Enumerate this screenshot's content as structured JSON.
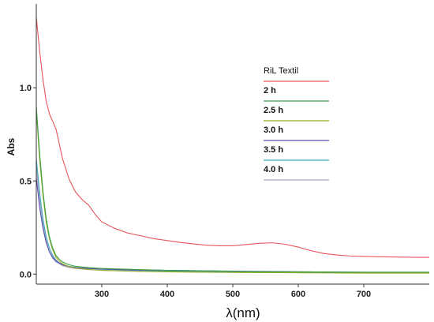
{
  "chart_data": {
    "type": "line",
    "title": "",
    "xlabel": "λ(nm)",
    "ylabel": "Abs",
    "xlim": [
      200,
      800
    ],
    "ylim": [
      -0.02,
      1.45
    ],
    "x_ticks": [
      300,
      400,
      500,
      600,
      700
    ],
    "y_ticks": [
      0.0,
      0.5,
      1.0
    ],
    "x_tick_labels": [
      "300",
      "400",
      "500",
      "600",
      "700"
    ],
    "y_tick_labels": [
      "0.0",
      "0.5",
      "1.0"
    ],
    "grid": false,
    "legend_position": "upper-right",
    "series": [
      {
        "name": "RiL  Textil",
        "color": "#e8545a",
        "bold": false,
        "x": [
          200,
          205,
          210,
          215,
          220,
          225,
          230,
          240,
          250,
          260,
          270,
          280,
          290,
          300,
          320,
          340,
          360,
          380,
          400,
          420,
          440,
          460,
          480,
          500,
          520,
          540,
          560,
          580,
          600,
          620,
          640,
          660,
          680,
          700,
          720,
          740,
          760,
          780,
          800
        ],
        "y": [
          1.38,
          1.2,
          1.05,
          0.93,
          0.86,
          0.82,
          0.78,
          0.62,
          0.51,
          0.44,
          0.4,
          0.37,
          0.32,
          0.28,
          0.245,
          0.22,
          0.205,
          0.19,
          0.18,
          0.17,
          0.162,
          0.155,
          0.152,
          0.152,
          0.158,
          0.165,
          0.168,
          0.16,
          0.145,
          0.125,
          0.11,
          0.102,
          0.097,
          0.095,
          0.093,
          0.092,
          0.091,
          0.09,
          0.09
        ]
      },
      {
        "name": "2 h",
        "color": "#3aa043",
        "bold": true,
        "x": [
          200,
          205,
          210,
          215,
          220,
          225,
          230,
          235,
          240,
          250,
          260,
          280,
          300,
          350,
          400,
          450,
          500,
          550,
          600,
          650,
          700,
          750,
          800
        ],
        "y": [
          0.9,
          0.65,
          0.45,
          0.3,
          0.2,
          0.14,
          0.1,
          0.08,
          0.065,
          0.05,
          0.042,
          0.035,
          0.03,
          0.025,
          0.02,
          0.018,
          0.015,
          0.013,
          0.012,
          0.011,
          0.01,
          0.01,
          0.01
        ]
      },
      {
        "name": "2.5 h",
        "color": "#9aab1f",
        "bold": true,
        "x": [
          200,
          205,
          210,
          215,
          220,
          225,
          230,
          235,
          240,
          250,
          260,
          280,
          300,
          350,
          400,
          450,
          500,
          550,
          600,
          650,
          700,
          750,
          800
        ],
        "y": [
          0.88,
          0.62,
          0.43,
          0.28,
          0.19,
          0.13,
          0.09,
          0.07,
          0.055,
          0.04,
          0.032,
          0.025,
          0.02,
          0.015,
          0.012,
          0.01,
          0.009,
          0.008,
          0.007,
          0.006,
          0.005,
          0.005,
          0.005
        ]
      },
      {
        "name": "3.0 h",
        "color": "#5a4fb0",
        "bold": true,
        "x": [
          200,
          205,
          210,
          215,
          220,
          225,
          230,
          235,
          240,
          250,
          260,
          280,
          300,
          350,
          400,
          450,
          500,
          550,
          600,
          650,
          700,
          750,
          800
        ],
        "y": [
          0.52,
          0.36,
          0.25,
          0.17,
          0.12,
          0.09,
          0.07,
          0.06,
          0.05,
          0.04,
          0.035,
          0.03,
          0.027,
          0.022,
          0.02,
          0.018,
          0.016,
          0.014,
          0.012,
          0.011,
          0.01,
          0.01,
          0.01
        ]
      },
      {
        "name": "3.5 h",
        "color": "#3fa7b5",
        "bold": true,
        "x": [
          200,
          205,
          210,
          215,
          220,
          225,
          230,
          235,
          240,
          250,
          260,
          280,
          300,
          350,
          400,
          450,
          500,
          550,
          600,
          650,
          700,
          750,
          800
        ],
        "y": [
          0.62,
          0.44,
          0.3,
          0.2,
          0.14,
          0.1,
          0.075,
          0.06,
          0.05,
          0.042,
          0.036,
          0.03,
          0.026,
          0.02,
          0.017,
          0.015,
          0.013,
          0.012,
          0.01,
          0.009,
          0.008,
          0.008,
          0.008
        ]
      },
      {
        "name": "4.0 h",
        "color": "#a8a8c8",
        "bold": true,
        "x": [
          200,
          205,
          210,
          215,
          220,
          225,
          230,
          235,
          240,
          250,
          260,
          280,
          300,
          350,
          400,
          450,
          500,
          550,
          600,
          650,
          700,
          750,
          800
        ],
        "y": [
          0.58,
          0.4,
          0.27,
          0.18,
          0.12,
          0.085,
          0.065,
          0.055,
          0.045,
          0.035,
          0.03,
          0.024,
          0.02,
          0.016,
          0.013,
          0.011,
          0.01,
          0.009,
          0.008,
          0.007,
          0.006,
          0.006,
          0.006
        ]
      }
    ]
  }
}
